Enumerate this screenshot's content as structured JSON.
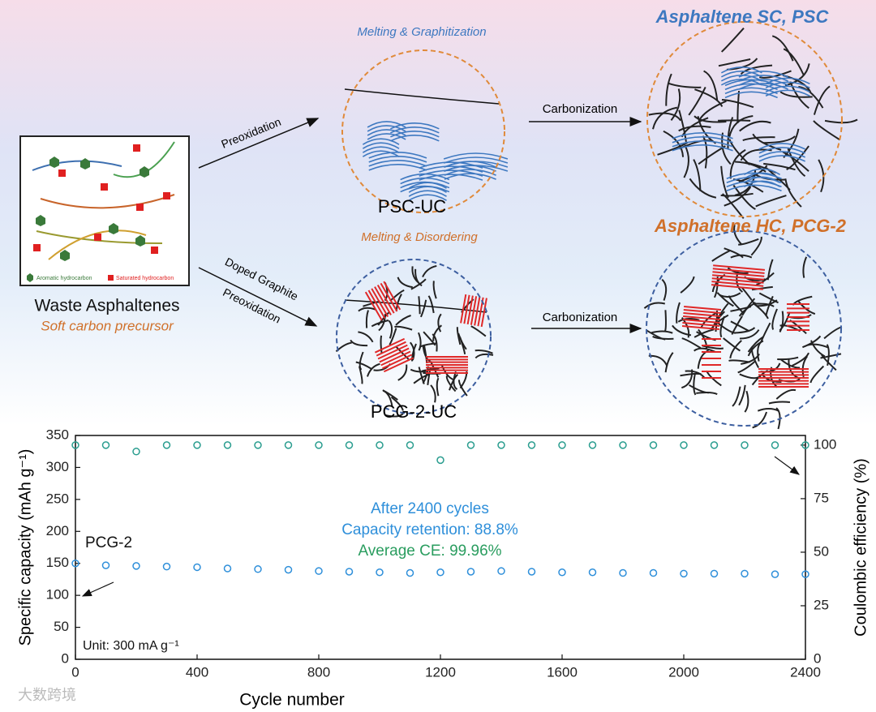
{
  "diagram": {
    "precursor_title": "Waste Asphaltenes",
    "precursor_subtitle": "Soft carbon precursor",
    "legend_aromatic": "Aromatic hydrocarbon",
    "legend_saturated": "Saturated hydrocarbon",
    "top_step": "Preoxidation",
    "top_process": "Melting & Graphitization",
    "top_intermediate": "PSC-UC",
    "top_carbonization": "Carbonization",
    "top_product": "Asphaltene SC, PSC",
    "bottom_step_1": "Doped Graphite",
    "bottom_step_2": "Preoxidation",
    "bottom_process": "Melting & Disordering",
    "bottom_intermediate": "PCG-2-UC",
    "bottom_carbonization": "Carbonization",
    "bottom_product": "Asphaltene HC, PCG-2",
    "watermark": "大数跨境"
  },
  "chart_data": {
    "type": "scatter",
    "xlabel": "Cycle number",
    "ylabel": "Specific capacity (mAh g⁻¹)",
    "y2label": "Coulombic efficiency (%)",
    "annotations": [
      "PCG-2",
      "After 2400 cycles",
      "Capacity retention: 88.8%",
      "Average CE: 99.96%",
      "Unit: 300 mA g⁻¹"
    ],
    "xlim": [
      0,
      2400
    ],
    "xticks": [
      0,
      400,
      800,
      1200,
      1600,
      2000,
      2400
    ],
    "ylim": [
      0,
      350
    ],
    "yticks": [
      0,
      50,
      100,
      150,
      200,
      250,
      300,
      350
    ],
    "y2lim": [
      0,
      104.5
    ],
    "y2ticks": [
      0,
      25,
      50,
      75,
      100
    ],
    "x": [
      0,
      100,
      200,
      300,
      400,
      500,
      600,
      700,
      800,
      900,
      1000,
      1100,
      1200,
      1300,
      1400,
      1500,
      1600,
      1700,
      1800,
      1900,
      2000,
      2100,
      2200,
      2300,
      2400
    ],
    "series": [
      {
        "name": "Specific capacity",
        "color": "#2e8fda",
        "values": [
          150,
          147,
          146,
          145,
          144,
          142,
          141,
          140,
          138,
          137,
          136,
          135,
          136,
          137,
          138,
          137,
          136,
          136,
          135,
          135,
          134,
          134,
          134,
          133,
          133
        ]
      },
      {
        "name": "Coulombic efficiency",
        "color": "#2a9d8f",
        "axis": "y2",
        "values": [
          100,
          100,
          97,
          100,
          100,
          100,
          100,
          100,
          100,
          100,
          100,
          100,
          93,
          100,
          100,
          100,
          100,
          100,
          100,
          100,
          100,
          100,
          100,
          100,
          100
        ]
      }
    ]
  }
}
